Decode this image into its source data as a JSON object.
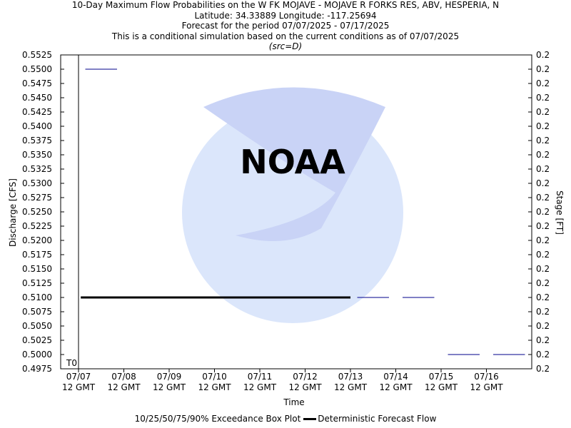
{
  "titles": {
    "line1": "10-Day Maximum Flow Probabilities on the W FK MOJAVE - MOJAVE R FORKS RES, ABV, HESPERIA, N",
    "line2": "Latitude: 34.33889 Longitude: -117.25694",
    "line3": "Forecast for the period 07/07/2025 - 07/17/2025",
    "line4": "This is a conditional simulation based on the current conditions as of 07/07/2025",
    "line5": "(src=D)"
  },
  "legend": {
    "box_label": "10/25/50/75/90% Exceedance Box Plot",
    "line_label": "Deterministic Forecast Flow"
  },
  "watermark": {
    "name": "noaa-logo",
    "text": "NOAA"
  },
  "colors": {
    "exceedance": "#00008b",
    "deterministic": "#000000",
    "axis": "#000000",
    "watermark": "#c8d6f5"
  },
  "chart_data": {
    "type": "line",
    "xlabel": "Time",
    "ylabel": "Discharge [CFS]",
    "ylabel_right": "Stage [FT]",
    "ylim": [
      0.4975,
      0.5525
    ],
    "yticks": [
      "0.4975",
      "0.5000",
      "0.5025",
      "0.5050",
      "0.5075",
      "0.5100",
      "0.5125",
      "0.5150",
      "0.5175",
      "0.5200",
      "0.5225",
      "0.5250",
      "0.5275",
      "0.5300",
      "0.5325",
      "0.5350",
      "0.5375",
      "0.5400",
      "0.5425",
      "0.5450",
      "0.5475",
      "0.5500",
      "0.5525"
    ],
    "yticks_right": [
      "0.2",
      "0.2",
      "0.2",
      "0.2",
      "0.2",
      "0.2",
      "0.2",
      "0.2",
      "0.2",
      "0.2",
      "0.2",
      "0.2",
      "0.2",
      "0.2",
      "0.2",
      "0.2",
      "0.2",
      "0.2",
      "0.2",
      "0.2",
      "0.2",
      "0.2",
      "0.2"
    ],
    "xlim_days": [
      0,
      10.5
    ],
    "xticks": [
      {
        "day": 0,
        "line1": "07/07",
        "line2": "12 GMT"
      },
      {
        "day": 1,
        "line1": "07/08",
        "line2": "12 GMT"
      },
      {
        "day": 2,
        "line1": "07/09",
        "line2": "12 GMT"
      },
      {
        "day": 3,
        "line1": "07/10",
        "line2": "12 GMT"
      },
      {
        "day": 4,
        "line1": "07/11",
        "line2": "12 GMT"
      },
      {
        "day": 5,
        "line1": "07/12",
        "line2": "12 GMT"
      },
      {
        "day": 6,
        "line1": "07/13",
        "line2": "12 GMT"
      },
      {
        "day": 7,
        "line1": "07/14",
        "line2": "12 GMT"
      },
      {
        "day": 8,
        "line1": "07/15",
        "line2": "12 GMT"
      },
      {
        "day": 9,
        "line1": "07/16",
        "line2": "12 GMT"
      }
    ],
    "t0_label": "T0",
    "t0_day": 0,
    "series": [
      {
        "name": "10/25/50/75/90% Exceedance Box Plot",
        "segments": [
          {
            "x0": 0.15,
            "x1": 0.85,
            "y": 0.55
          },
          {
            "x0": 6.15,
            "x1": 6.85,
            "y": 0.51
          },
          {
            "x0": 7.15,
            "x1": 7.85,
            "y": 0.51
          },
          {
            "x0": 8.15,
            "x1": 8.85,
            "y": 0.5
          },
          {
            "x0": 9.15,
            "x1": 9.85,
            "y": 0.5
          }
        ]
      },
      {
        "name": "Deterministic Forecast Flow",
        "x": [
          0.05,
          6.0
        ],
        "y": [
          0.51,
          0.51
        ]
      }
    ],
    "grid": false,
    "legend_position": "bottom"
  }
}
